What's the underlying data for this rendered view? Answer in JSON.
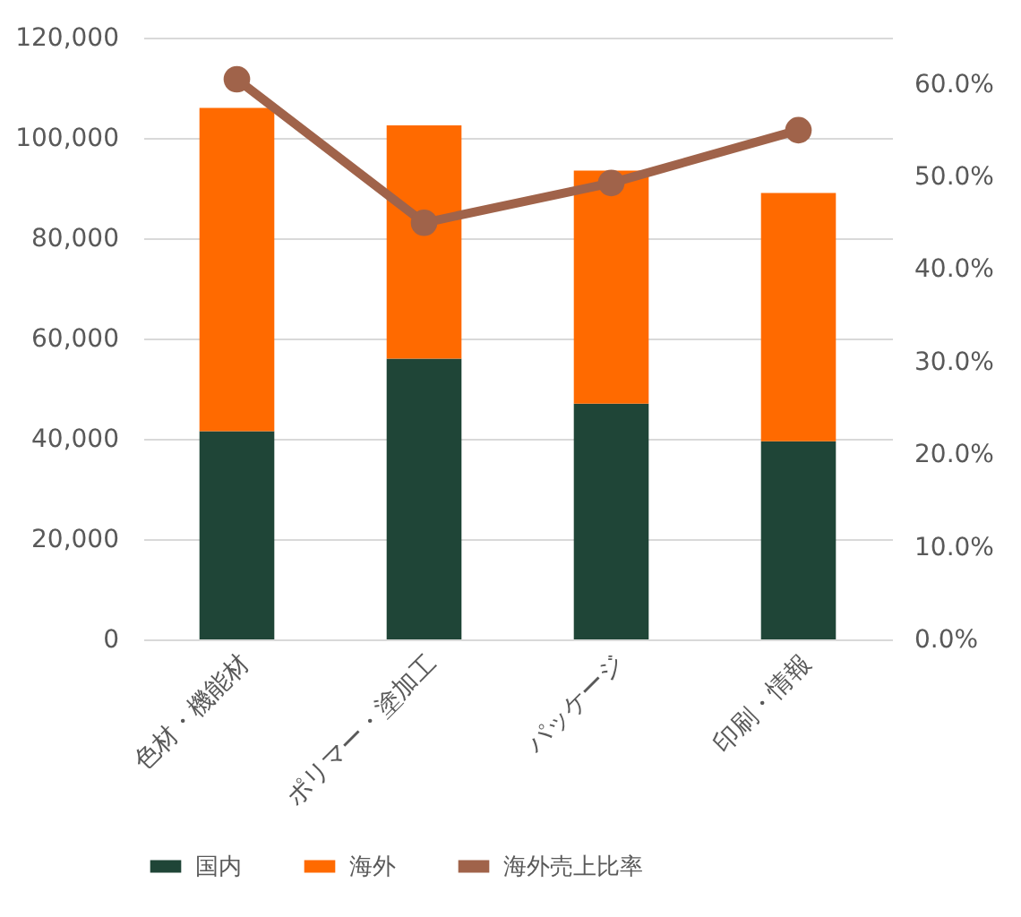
{
  "chart_data": {
    "type": "bar",
    "stacked": true,
    "categories": [
      "色材・機能材",
      "ポリマー・塗加工",
      "パッケージ",
      "印刷・情報"
    ],
    "series": [
      {
        "name": "国内",
        "color": "#1f4537",
        "values": [
          41500,
          56000,
          47000,
          39500
        ]
      },
      {
        "name": "海外",
        "color": "#ff6a00",
        "values": [
          64500,
          46500,
          46500,
          49500
        ]
      },
      {
        "name": "海外売上比率",
        "type": "line",
        "axis": "y2",
        "color": "#a0634a",
        "marker": "circle",
        "values": [
          60.5,
          45.0,
          49.3,
          55.0
        ]
      }
    ],
    "ylim": [
      0,
      120000
    ],
    "yticks": [
      {
        "value": 0,
        "label": "0"
      },
      {
        "value": 20000,
        "label": "20,000"
      },
      {
        "value": 40000,
        "label": "40,000"
      },
      {
        "value": 60000,
        "label": "60,000"
      },
      {
        "value": 80000,
        "label": "80,000"
      },
      {
        "value": 100000,
        "label": "100,000"
      },
      {
        "value": 120000,
        "label": "120,000"
      }
    ],
    "y2lim": [
      0,
      65
    ],
    "y2ticks": [
      {
        "value": 0,
        "label": "0.0%"
      },
      {
        "value": 10,
        "label": "10.0%"
      },
      {
        "value": 20,
        "label": "20.0%"
      },
      {
        "value": 30,
        "label": "30.0%"
      },
      {
        "value": 40,
        "label": "40.0%"
      },
      {
        "value": 50,
        "label": "50.0%"
      },
      {
        "value": 60,
        "label": "60.0%"
      }
    ],
    "grid": "y",
    "legend": "bottom"
  }
}
